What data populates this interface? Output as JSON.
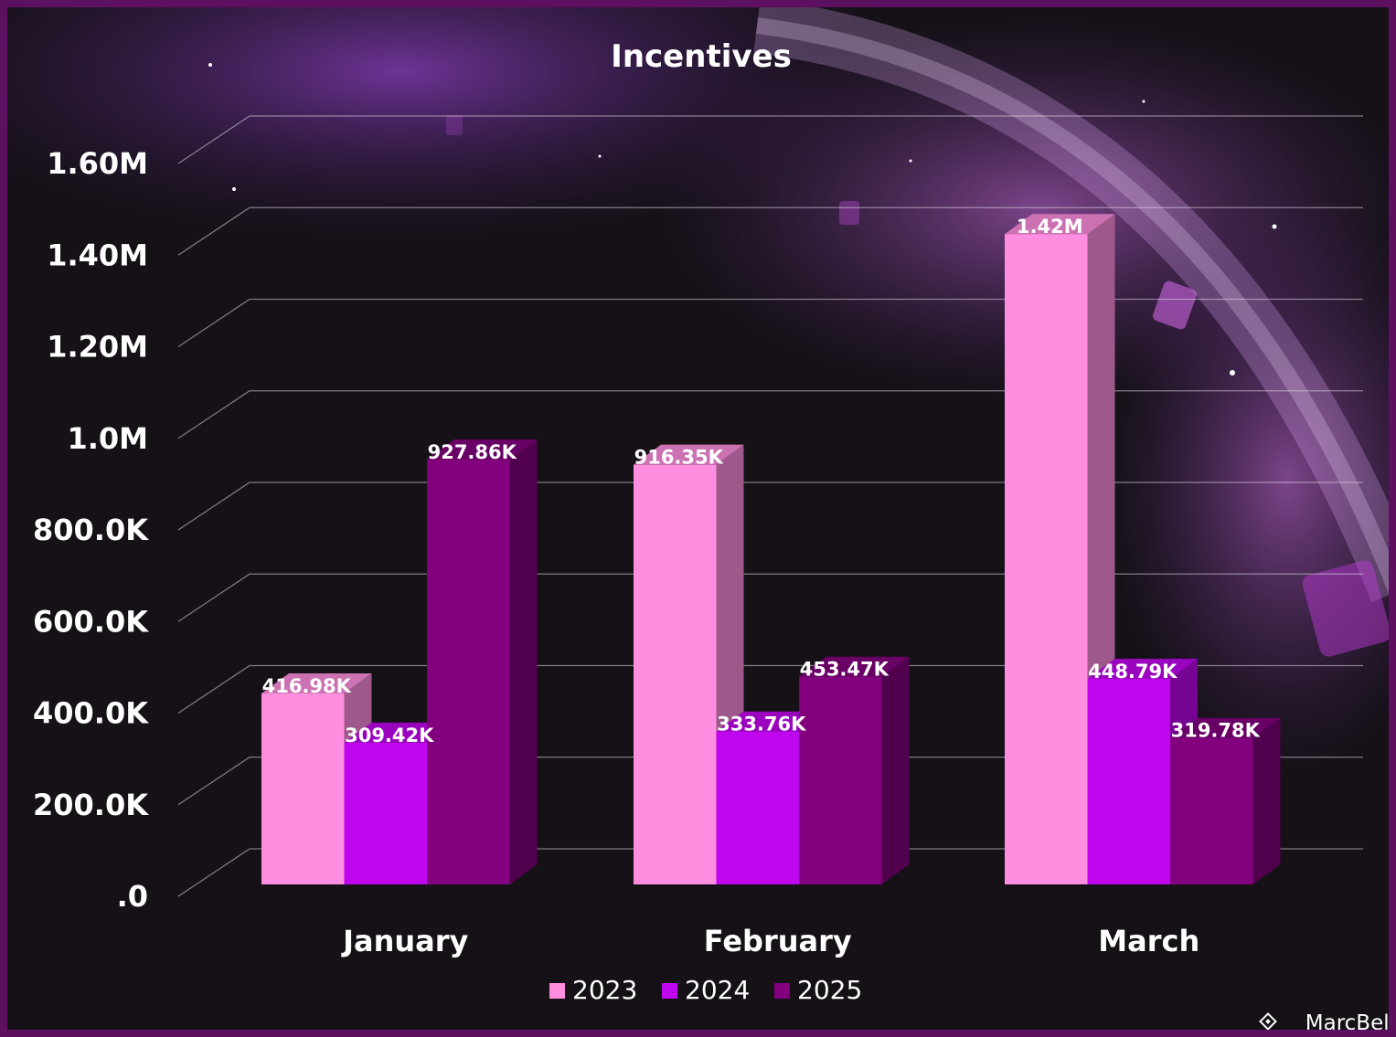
{
  "chart_data": {
    "type": "bar",
    "title": "Incentives",
    "categories": [
      "January",
      "February",
      "March"
    ],
    "series": [
      {
        "name": "2023",
        "values": [
          416980,
          916350,
          1420000
        ],
        "labels": [
          "416.98K",
          "916.35K",
          "1.42M"
        ]
      },
      {
        "name": "2024",
        "values": [
          309420,
          333760,
          448790
        ],
        "labels": [
          "309.42K",
          "333.76K",
          "448.79K"
        ]
      },
      {
        "name": "2025",
        "values": [
          927860,
          453470,
          319780
        ],
        "labels": [
          "927.86K",
          "453.47K",
          "319.78K"
        ]
      }
    ],
    "y_ticks": [
      ".0",
      "200.0K",
      "400.0K",
      "600.0K",
      "800.0K",
      "1.0M",
      "1.20M",
      "1.40M",
      "1.60M"
    ],
    "ylim": [
      0,
      1600000
    ],
    "grid": true,
    "legend_position": "bottom-center",
    "colors": {
      "2023": "#ff8ee0",
      "2024": "#c005ef",
      "2025": "#82007e"
    }
  },
  "watermark": {
    "text": "MarcBell",
    "icon": "diamond-logo-icon"
  }
}
